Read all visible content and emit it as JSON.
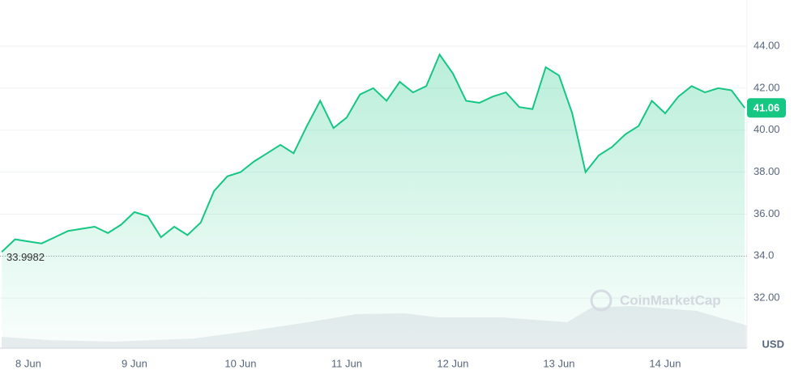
{
  "chart_data": {
    "type": "area",
    "categories": [
      null,
      null,
      "8 Jun",
      null,
      null,
      null,
      null,
      null,
      null,
      null,
      "9 Jun",
      null,
      null,
      null,
      null,
      null,
      null,
      null,
      "10 Jun",
      null,
      null,
      null,
      null,
      null,
      null,
      null,
      "11 Jun",
      null,
      null,
      null,
      null,
      null,
      null,
      null,
      "12 Jun",
      null,
      null,
      null,
      null,
      null,
      null,
      null,
      "13 Jun",
      null,
      null,
      null,
      null,
      null,
      null,
      null,
      "14 Jun",
      null,
      null,
      null,
      null,
      null,
      null
    ],
    "series": [
      {
        "color": "#16c784",
        "values": [
          34.2,
          34.8,
          34.7,
          34.6,
          34.9,
          35.2,
          35.3,
          35.4,
          35.1,
          35.5,
          36.1,
          35.9,
          34.9,
          35.4,
          35.0,
          35.6,
          37.1,
          37.8,
          38.0,
          38.5,
          38.9,
          39.3,
          38.9,
          40.2,
          41.4,
          40.1,
          40.6,
          41.7,
          42.0,
          41.4,
          42.3,
          41.8,
          42.1,
          43.6,
          42.7,
          41.4,
          41.3,
          41.6,
          41.8,
          41.1,
          41.0,
          43.0,
          42.6,
          40.8,
          38.0,
          38.8,
          39.2,
          39.8,
          40.2,
          41.4,
          40.8,
          41.6,
          42.1,
          41.8,
          42.0,
          41.9,
          41.06
        ]
      }
    ],
    "baseline": 33.9982,
    "ylim": [
      30,
      46
    ],
    "yticks": [
      {
        "value": 32,
        "label": "32.00"
      },
      {
        "value": 34,
        "label": "34.0"
      },
      {
        "value": 36,
        "label": "36.00"
      },
      {
        "value": 38,
        "label": "38.00"
      },
      {
        "value": 40,
        "label": "40.00"
      },
      {
        "value": 42,
        "label": "42.00"
      },
      {
        "value": 44,
        "label": "44.00"
      }
    ],
    "y_unit": "USD",
    "watermark": "CoinMarketCap",
    "grid": true
  }
}
